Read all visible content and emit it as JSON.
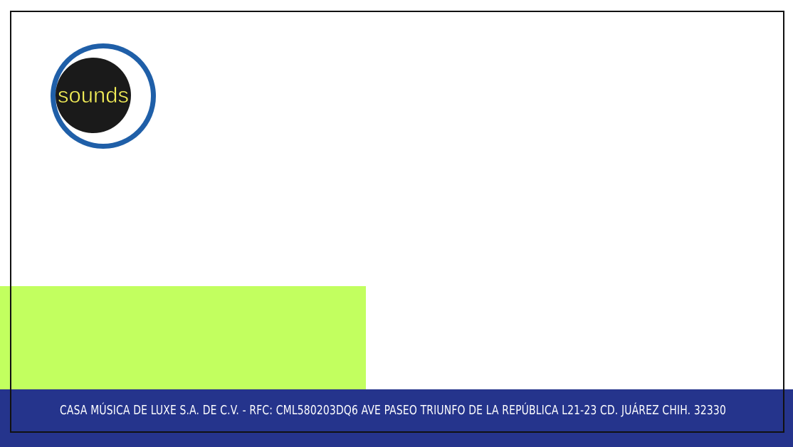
{
  "brand": {
    "logo_text": "sounds",
    "ring_color": "#1f5fa8",
    "disc_color": "#1a1a1a",
    "text_color": "#f3ee57"
  },
  "colors": {
    "background": "#ffffff",
    "frame": "#111111",
    "green_block": "#c2ff5f",
    "footer_bar": "#25348c",
    "footer_text": "#ffffff"
  },
  "footer": {
    "text": "CASA MÚSICA DE LUXE S.A. DE C.V. - RFC: CML580203DQ6  AVE PASEO TRIUNFO DE LA REPÚBLICA L21-23 CD. JUÁREZ CHIH. 32330"
  }
}
